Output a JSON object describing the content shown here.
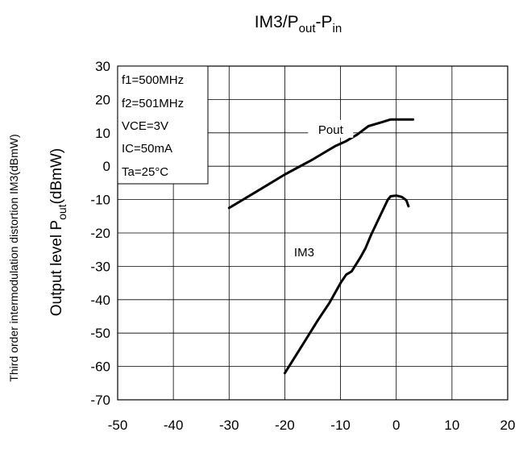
{
  "chart_data": {
    "type": "line",
    "title": {
      "main": "IM3/P",
      "sub1": "out",
      "mid": "-P",
      "sub2": "in"
    },
    "ylabel_outer": "Third order intermodulation distortion IM3(dBmW)",
    "ylabel_inner": {
      "main": "Output level P",
      "sub": "out",
      "tail": "(dBmW)"
    },
    "xlabel": "",
    "xlim": [
      -50,
      20
    ],
    "ylim": [
      -70,
      30
    ],
    "xticks": [
      -50,
      -40,
      -30,
      -20,
      -10,
      0,
      10,
      20
    ],
    "yticks": [
      30,
      20,
      10,
      0,
      -10,
      -20,
      -30,
      -40,
      -50,
      -60,
      -70
    ],
    "grid": true,
    "conditions": [
      "f1=500MHz",
      "f2=501MHz",
      "VCE=3V",
      "IC=50mA",
      "Ta=25°C"
    ],
    "series": [
      {
        "name": "Pout",
        "label_pos": [
          -7,
          9.5
        ],
        "points": [
          [
            -30,
            -12.5
          ],
          [
            -25,
            -7.5
          ],
          [
            -20,
            -2.5
          ],
          [
            -15,
            2
          ],
          [
            -13,
            4
          ],
          [
            -11,
            6
          ],
          [
            -9,
            7.5
          ],
          [
            -7,
            9.5
          ],
          [
            -5,
            12
          ],
          [
            -3,
            13
          ],
          [
            -1,
            14
          ],
          [
            0,
            14
          ],
          [
            3,
            14
          ]
        ]
      },
      {
        "name": "IM3",
        "label_pos": [
          -20,
          -26
        ],
        "points": [
          [
            -20,
            -62
          ],
          [
            -17,
            -54
          ],
          [
            -14,
            -46
          ],
          [
            -12,
            -41
          ],
          [
            -11,
            -38
          ],
          [
            -10,
            -35
          ],
          [
            -9,
            -32.5
          ],
          [
            -8,
            -31.5
          ],
          [
            -6.5,
            -27.5
          ],
          [
            -5.5,
            -24.5
          ],
          [
            -4.5,
            -20.5
          ],
          [
            -3.5,
            -17
          ],
          [
            -2.5,
            -13.5
          ],
          [
            -1.5,
            -10
          ],
          [
            -1,
            -9
          ],
          [
            0,
            -8.8
          ],
          [
            1,
            -9.2
          ],
          [
            1.8,
            -10.2
          ],
          [
            2.2,
            -12
          ]
        ]
      }
    ]
  }
}
